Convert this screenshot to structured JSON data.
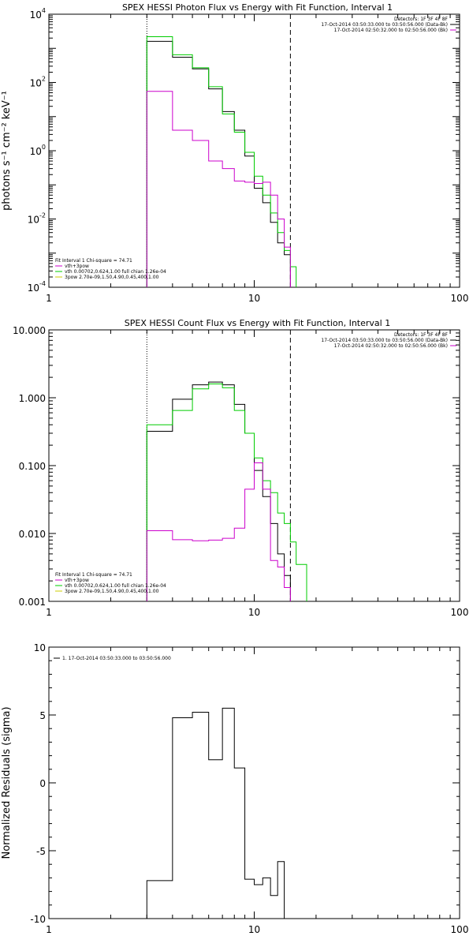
{
  "chart_data": [
    {
      "type": "line",
      "title": "SPEX HESSI Photon Flux vs Energy with Fit Function, Interval 1",
      "ylabel": "photons s⁻¹ cm⁻² keV⁻¹",
      "xscale": "log",
      "yscale": "log",
      "xlim": [
        1,
        100
      ],
      "ylim": [
        0.0001,
        10000
      ],
      "xticks": [
        "1",
        "10",
        "100"
      ],
      "yticks": [
        {
          "base": "10",
          "exp": "-4",
          "v": 0.0001
        },
        {
          "base": "10",
          "exp": "-2",
          "v": 0.01
        },
        {
          "base": "10",
          "exp": "0",
          "v": 1
        },
        {
          "base": "10",
          "exp": "2",
          "v": 100
        },
        {
          "base": "10",
          "exp": "4",
          "v": 10000
        }
      ],
      "vlines": [
        {
          "x": 3,
          "style": "dotted"
        },
        {
          "x": 15,
          "style": "dashed"
        }
      ],
      "legend_top": {
        "header": "Detectors: 1F 3F 4F 8F",
        "entries": [
          {
            "label": "17-Oct-2014 03:50:33.000 to 03:50:56.000 (Data-Bk)",
            "color": "#000000"
          },
          {
            "label": "17-Oct-2014 02:50:32.000 to 02:50:56.000 (Bk)",
            "color": "#cc00cc"
          }
        ]
      },
      "legend_bottom": {
        "header": "Fit Interval 1    Chi-square = 74.71",
        "entries": [
          {
            "label": "vth+3pow",
            "color": "#cc00cc"
          },
          {
            "label": "vth 0.00702,0.624,1.00  full chian 1.26e-04",
            "color": "#00cc00"
          },
          {
            "label": "3pow 2.70e-09,1.50,4.90,0.45,400,1.00",
            "color": "#cccc00"
          }
        ]
      },
      "series": [
        {
          "color": "#000000",
          "edges": [
            3,
            4,
            5,
            6,
            7,
            8,
            9,
            10,
            11,
            12,
            13,
            14,
            15
          ],
          "values": [
            1600,
            550,
            250,
            65,
            14,
            4,
            0.7,
            0.08,
            0.03,
            0.008,
            0.002,
            0.0009
          ]
        },
        {
          "color": "#00cc00",
          "edges": [
            3,
            4,
            5,
            6,
            7,
            8,
            9,
            10,
            11,
            12,
            13,
            14,
            15,
            16
          ],
          "values": [
            2200,
            650,
            270,
            75,
            12,
            3.5,
            0.9,
            0.18,
            0.05,
            0.015,
            0.004,
            0.0012,
            0.0004
          ]
        },
        {
          "color": "#cc00cc",
          "edges": [
            3,
            4,
            5,
            6,
            7,
            8,
            9,
            10,
            11,
            12,
            13,
            14,
            15
          ],
          "values": [
            55,
            4,
            2,
            0.5,
            0.3,
            0.13,
            0.12,
            0.11,
            0.12,
            0.05,
            0.01,
            0.0015
          ]
        }
      ]
    },
    {
      "type": "line",
      "title": "SPEX HESSI Count Flux vs Energy with Fit Function, Interval 1",
      "xscale": "log",
      "yscale": "log",
      "xlim": [
        1,
        100
      ],
      "ylim": [
        0.001,
        10
      ],
      "xticks": [
        "1",
        "10",
        "100"
      ],
      "yticks": [
        {
          "label": "0.001",
          "v": 0.001
        },
        {
          "label": "0.010",
          "v": 0.01
        },
        {
          "label": "0.100",
          "v": 0.1
        },
        {
          "label": "1.000",
          "v": 1
        },
        {
          "label": "10.000",
          "v": 10
        }
      ],
      "vlines": [
        {
          "x": 3,
          "style": "dotted"
        },
        {
          "x": 15,
          "style": "dashed"
        }
      ],
      "legend_top": {
        "header": "Detectors: 1F 3F 4F 8F",
        "entries": [
          {
            "label": "17-Oct-2014 03:50:33.000 to 03:50:56.000 (Data-Bk)",
            "color": "#000000"
          },
          {
            "label": "17-Oct-2014 02:50:32.000 to 02:50:56.000 (Bk)",
            "color": "#cc00cc"
          }
        ]
      },
      "legend_bottom": {
        "header": "Fit Interval 1    Chi-square = 74.71",
        "entries": [
          {
            "label": "vth+3pow",
            "color": "#cc00cc"
          },
          {
            "label": "vth 0.00702,0.624,1.00  full chian 1.26e-04",
            "color": "#00cc00"
          },
          {
            "label": "3pow 2.70e-09,1.50,4.90,0.45,400,1.00",
            "color": "#cccc00"
          }
        ]
      },
      "series": [
        {
          "color": "#000000",
          "edges": [
            3,
            4,
            5,
            6,
            7,
            8,
            9,
            10,
            11,
            12,
            13,
            14,
            15
          ],
          "values": [
            0.32,
            0.95,
            1.55,
            1.7,
            1.55,
            0.8,
            0.3,
            0.085,
            0.035,
            0.014,
            0.005,
            0.0024
          ]
        },
        {
          "color": "#00cc00",
          "edges": [
            3,
            4,
            5,
            6,
            7,
            8,
            9,
            10,
            11,
            12,
            13,
            14,
            15,
            16,
            17,
            18
          ],
          "values": [
            0.4,
            0.65,
            1.35,
            1.6,
            1.4,
            0.65,
            0.3,
            0.13,
            0.06,
            0.04,
            0.02,
            0.014,
            0.0075,
            0.0035,
            0.0035
          ]
        },
        {
          "color": "#cc00cc",
          "edges": [
            3,
            4,
            5,
            6,
            7,
            8,
            9,
            10,
            11,
            12,
            13,
            14,
            15
          ],
          "values": [
            0.011,
            0.0081,
            0.0078,
            0.008,
            0.0085,
            0.012,
            0.045,
            0.11,
            0.045,
            0.004,
            0.0032,
            0.0016
          ]
        }
      ]
    },
    {
      "type": "line",
      "ylabel": "Normalized Residuals (sigma)",
      "xscale": "log",
      "yscale": "linear",
      "xlim": [
        1,
        100
      ],
      "ylim": [
        -10,
        10
      ],
      "xticks": [
        "1",
        "10",
        "100"
      ],
      "yticks": [
        {
          "label": "10",
          "v": 10
        },
        {
          "label": "5",
          "v": 5
        },
        {
          "label": "0",
          "v": 0
        },
        {
          "label": "-5",
          "v": -5
        },
        {
          "label": "-10",
          "v": -10
        }
      ],
      "legend_top": {
        "entries": [
          {
            "label": "1. 17-Oct-2014 03:50:33.000 to 03:50:56.000",
            "color": "#000000"
          }
        ]
      },
      "series": [
        {
          "color": "#000000",
          "edges": [
            3,
            4,
            5,
            6,
            7,
            8,
            9,
            10,
            11,
            12,
            13,
            14,
            15
          ],
          "values": [
            -7.2,
            4.8,
            5.2,
            1.7,
            5.5,
            1.1,
            -7.1,
            -7.5,
            -7.0,
            -8.3,
            -5.8,
            -10
          ]
        }
      ]
    }
  ]
}
